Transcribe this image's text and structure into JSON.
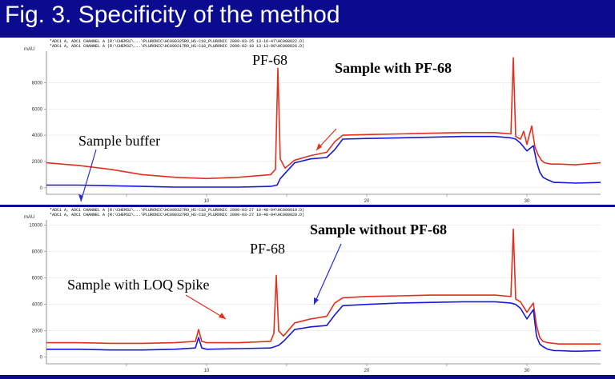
{
  "slide": {
    "title": "Fig. 3. Specificity of the method"
  },
  "colors": {
    "background": "#0b0b8f",
    "red": "#e0301e",
    "blue": "#1818d8",
    "purple": "#8c1a9c"
  },
  "chart_data": [
    {
      "type": "line",
      "unit_label": "mAU",
      "headers": [
        "*ADC1 A, ADC1 CHANNEL A (R:\\CHEM32\\...\\PLURONIC\\HC090325RO_HS-C18_PLURONIC 2009-03-25 13-16-47\\HC000022.D)",
        "*ADC1 A, ADC1 CHANNEL A (R:\\CHEM32\\...\\PLURONIC\\HC090217RO_HS-C18_PLURONIC 2009-02-18 13-13-00\\HC000026.D)"
      ],
      "xlim": [
        0,
        34.6
      ],
      "ylim": [
        -500,
        10400
      ],
      "yticks": [
        0,
        2000,
        4000,
        6000,
        8000
      ],
      "yticklabels": [
        "0",
        "2000",
        "4000",
        "6000",
        "8000"
      ],
      "xticks": [
        5,
        10,
        15,
        20,
        25,
        30
      ],
      "xticklabels": [
        "",
        "10",
        "",
        "20",
        "",
        "30"
      ],
      "series": [
        {
          "color": "red",
          "x": [
            0,
            2,
            4,
            6,
            8,
            10,
            12,
            14,
            14.3,
            14.45,
            14.6,
            14.9,
            15.5,
            16.5,
            17.5,
            18,
            18.5,
            20,
            22,
            24,
            26,
            28,
            29.0,
            29.15,
            29.3,
            29.6,
            29.8,
            30.0,
            30.3,
            30.5,
            30.7,
            30.9,
            31.1,
            31.5,
            32,
            33,
            34.6
          ],
          "y": [
            1900,
            1700,
            1400,
            1000,
            800,
            700,
            800,
            1000,
            1400,
            9100,
            2200,
            1500,
            2100,
            2450,
            2700,
            3500,
            4000,
            4050,
            4100,
            4150,
            4200,
            4200,
            4100,
            9900,
            3900,
            3700,
            4300,
            3300,
            4700,
            3100,
            2500,
            2100,
            1900,
            1800,
            1800,
            1750,
            1900
          ]
        },
        {
          "color": "blue",
          "x": [
            0,
            2,
            4,
            6,
            8,
            10,
            12,
            14,
            14.4,
            14.6,
            14.9,
            15.5,
            16.5,
            17.5,
            18,
            18.5,
            20,
            22,
            24,
            26,
            28,
            29.0,
            29.3,
            29.6,
            30.0,
            30.4,
            30.6,
            30.8,
            31.0,
            31.3,
            31.7,
            32,
            33,
            34.6
          ],
          "y": [
            200,
            200,
            150,
            100,
            50,
            50,
            50,
            100,
            200,
            700,
            1100,
            1900,
            2200,
            2300,
            2900,
            3700,
            3750,
            3800,
            3850,
            3900,
            3900,
            3800,
            3700,
            3400,
            2800,
            3200,
            2000,
            1200,
            800,
            600,
            400,
            400,
            350,
            400
          ]
        }
      ],
      "annotations": [
        {
          "text": "Sample buffer",
          "bold": false
        },
        {
          "text": "PF-68",
          "bold": false
        },
        {
          "text": "Sample with PF-68",
          "bold": true
        }
      ]
    },
    {
      "type": "line",
      "unit_label": "mAU",
      "headers": [
        "*ADC1 A, ADC1 CHANNEL A (R:\\CHEM32\\...\\PLURONIC\\HC090327RO_HS-C18_PLURONIC 2009-03-27 10-48-04\\HC000019.D)",
        "*ADC1 A, ADC1 CHANNEL A (R:\\CHEM32\\...\\PLURONIC\\HC090327RO_HS-C18_PLURONIC 2009-03-27 10-48-04\\HC000020.D)"
      ],
      "xlim": [
        0,
        34.6
      ],
      "ylim": [
        -500,
        10400
      ],
      "yticks": [
        0,
        2000,
        4000,
        6000,
        8000,
        10000
      ],
      "yticklabels": [
        "0",
        "2000",
        "4000",
        "6000",
        "8000",
        "10000"
      ],
      "xticks": [
        5,
        10,
        15,
        20,
        25,
        30
      ],
      "xticklabels": [
        "",
        "10",
        "",
        "20",
        "",
        "30"
      ],
      "series": [
        {
          "color": "red",
          "x": [
            0,
            2,
            4,
            6,
            8,
            9.3,
            9.5,
            9.7,
            10,
            12,
            14,
            14.2,
            14.35,
            14.5,
            14.8,
            15.5,
            16.5,
            17.5,
            18,
            18.5,
            20,
            22,
            24,
            26,
            28,
            29.0,
            29.15,
            29.3,
            29.6,
            30.0,
            30.4,
            30.6,
            30.8,
            31.0,
            31.3,
            31.7,
            32,
            33,
            34.6
          ],
          "y": [
            1100,
            1100,
            1050,
            1050,
            1100,
            1200,
            2100,
            1200,
            1100,
            1100,
            1200,
            1800,
            6200,
            2000,
            1600,
            2600,
            2900,
            3100,
            4100,
            4500,
            4600,
            4650,
            4700,
            4700,
            4700,
            4600,
            9700,
            4400,
            4200,
            3400,
            4100,
            2400,
            1500,
            1200,
            1100,
            1050,
            1000,
            1000,
            1000
          ]
        },
        {
          "color": "blue",
          "x": [
            0,
            2,
            4,
            6,
            8,
            9.3,
            9.5,
            9.7,
            10,
            12,
            14,
            14.5,
            14.8,
            15.5,
            16.5,
            17.5,
            18,
            18.5,
            20,
            22,
            24,
            26,
            28,
            29.0,
            29.3,
            29.6,
            30.0,
            30.4,
            30.6,
            30.8,
            31.0,
            31.3,
            31.7,
            32,
            33,
            34.6
          ],
          "y": [
            600,
            600,
            550,
            550,
            600,
            700,
            1500,
            700,
            600,
            650,
            700,
            900,
            1200,
            2100,
            2300,
            2400,
            3200,
            3900,
            4000,
            4100,
            4150,
            4200,
            4200,
            4100,
            4000,
            3700,
            2900,
            3600,
            1600,
            1000,
            800,
            600,
            500,
            500,
            450,
            500
          ]
        }
      ],
      "annotations": [
        {
          "text": "Sample with LOQ Spike",
          "bold": false
        },
        {
          "text": "PF-68",
          "bold": false
        },
        {
          "text": "Sample without PF-68",
          "bold": true
        }
      ]
    }
  ]
}
